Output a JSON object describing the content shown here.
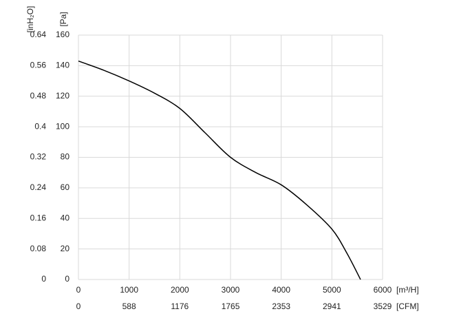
{
  "chart_data": {
    "type": "line",
    "x_unit_label": "[m³/H]",
    "x2_unit_label": "[CFM]",
    "y_unit_label": "[Pa]",
    "y2_unit_label": "[inH₂O]",
    "x": [
      0,
      500,
      1000,
      1500,
      2000,
      2500,
      3000,
      3500,
      4000,
      4500,
      5000,
      5300,
      5565
    ],
    "series": [
      {
        "color": "#000000",
        "values": [
          143,
          137,
          130,
          122,
          112,
          96,
          80,
          70,
          62,
          49,
          33,
          17,
          0
        ]
      }
    ],
    "xlim": [
      0,
      6000
    ],
    "xticks": [
      0,
      1000,
      2000,
      3000,
      4000,
      5000,
      6000
    ],
    "x2lim": [
      0,
      3529
    ],
    "x2ticks": [
      0,
      588,
      1176,
      1765,
      2353,
      2941,
      3529
    ],
    "ylim": [
      0,
      160
    ],
    "yticks": [
      0,
      20,
      40,
      60,
      80,
      100,
      120,
      140,
      160
    ],
    "y2lim": [
      0,
      0.64
    ],
    "y2ticks": [
      0,
      0.08,
      0.16,
      0.24,
      0.32,
      0.4,
      0.48,
      0.56,
      0.64
    ],
    "grid": true
  }
}
